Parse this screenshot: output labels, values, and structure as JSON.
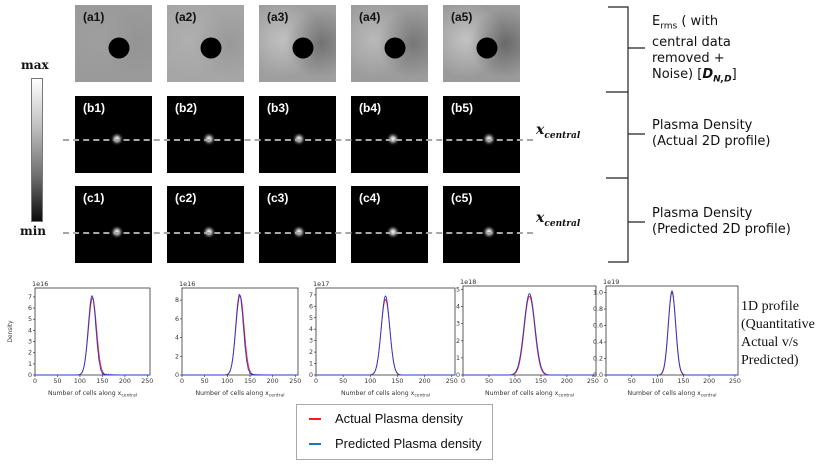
{
  "grid": {
    "row_a": [
      {
        "label": "(a1)",
        "tone": "#9a9a9a",
        "lobe": 0.05
      },
      {
        "label": "(a2)",
        "tone": "#a6a6a6",
        "lobe": 0.1
      },
      {
        "label": "(a3)",
        "tone": "#9e9e9e",
        "lobe": 0.35
      },
      {
        "label": "(a4)",
        "tone": "#9c9c9c",
        "lobe": 0.3
      },
      {
        "label": "(a5)",
        "tone": "#9a9a9a",
        "lobe": 0.4
      }
    ],
    "row_b": [
      {
        "label": "(b1)"
      },
      {
        "label": "(b2)"
      },
      {
        "label": "(b3)"
      },
      {
        "label": "(b4)"
      },
      {
        "label": "(b5)"
      }
    ],
    "row_c": [
      {
        "label": "(c1)"
      },
      {
        "label": "(c2)"
      },
      {
        "label": "(c3)"
      },
      {
        "label": "(c4)"
      },
      {
        "label": "(c5)"
      }
    ]
  },
  "colorbar": {
    "max": "max",
    "min": "min"
  },
  "xcentral": {
    "base": "x",
    "sub": "central"
  },
  "right_labels": {
    "erms": {
      "base": "E",
      "sub": "rms",
      "line1_rest": " ( with",
      "line2": "central data",
      "line3": "removed +",
      "line4_prefix": "Noise) [",
      "d_base": "D",
      "d_sub": "N,D",
      "line4_suffix": "]"
    },
    "actual": {
      "line1": "Plasma  Density",
      "line2": "(Actual 2D profile)"
    },
    "predicted": {
      "line1": "Plasma  Density",
      "line2": "(Predicted 2D profile)"
    }
  },
  "profile_label": {
    "line1": "1D profile",
    "line2": "(Quantitative",
    "line3": "Actual v/s",
    "line4": "Predicted)"
  },
  "legend": {
    "actual": {
      "label": "Actual Plasma density",
      "color": "#ff1a1a"
    },
    "predicted": {
      "label": "Predicted  Plasma density",
      "color": "#1f77b4"
    }
  },
  "chart_data": [
    {
      "type": "line",
      "x_tick_labels": [
        "0",
        "50",
        "100",
        "150",
        "200",
        "250"
      ],
      "y_tick_labels": [
        "0",
        "1",
        "2",
        "3",
        "4",
        "5",
        "6",
        "7"
      ],
      "scale_label": "1e16",
      "ylabel": "Density",
      "xlabel_base": "Number of cells along x",
      "xlabel_sub": "central",
      "xlim": [
        0,
        256
      ],
      "ylim": [
        0,
        7.8
      ],
      "series": [
        {
          "name": "Actual Plasma density",
          "color": "#ff1a1a",
          "peak": 6.9,
          "center": 128,
          "width": 9
        },
        {
          "name": "Predicted  Plasma density",
          "color": "#1f3cd6",
          "peak": 7.1,
          "center": 127,
          "width": 8.5,
          "noise": true
        }
      ]
    },
    {
      "type": "line",
      "x_tick_labels": [
        "0",
        "50",
        "100",
        "150",
        "200",
        "250"
      ],
      "y_tick_labels": [
        "0",
        "2",
        "4",
        "6",
        "8"
      ],
      "scale_label": "1e16",
      "ylabel": "",
      "xlabel_base": "Number of cells along x",
      "xlabel_sub": "central",
      "xlim": [
        0,
        256
      ],
      "ylim": [
        0,
        9.3
      ],
      "series": [
        {
          "name": "Actual Plasma density",
          "color": "#ff1a1a",
          "peak": 8.5,
          "center": 128,
          "width": 9
        },
        {
          "name": "Predicted  Plasma density",
          "color": "#1f3cd6",
          "peak": 8.6,
          "center": 127,
          "width": 8.5,
          "noise": true
        }
      ]
    },
    {
      "type": "line",
      "x_tick_labels": [
        "0",
        "50",
        "100",
        "150",
        "200",
        "250"
      ],
      "y_tick_labels": [
        "0",
        "1",
        "2",
        "3",
        "4",
        "5",
        "6",
        "7"
      ],
      "scale_label": "1e17",
      "ylabel": "",
      "xlabel_base": "Number of cells along x",
      "xlabel_sub": "central",
      "xlim": [
        0,
        256
      ],
      "ylim": [
        0,
        7.6
      ],
      "series": [
        {
          "name": "Actual Plasma density",
          "color": "#ff1a1a",
          "peak": 6.6,
          "center": 128,
          "width": 8
        },
        {
          "name": "Predicted  Plasma density",
          "color": "#1f3cd6",
          "peak": 6.9,
          "center": 128,
          "width": 7.8
        }
      ]
    },
    {
      "type": "line",
      "x_tick_labels": [
        "0",
        "50",
        "100",
        "150",
        "200",
        "250"
      ],
      "y_tick_labels": [
        "0",
        "1",
        "2",
        "3",
        "4",
        "5"
      ],
      "scale_label": "1e18",
      "ylabel": "",
      "xlabel_base": "Number of cells along x",
      "xlabel_sub": "central",
      "xlim": [
        0,
        256
      ],
      "ylim": [
        0,
        5.2
      ],
      "series": [
        {
          "name": "Actual Plasma density",
          "color": "#ff1a1a",
          "peak": 4.6,
          "center": 128,
          "width": 10
        },
        {
          "name": "Predicted  Plasma density",
          "color": "#1f3cd6",
          "peak": 4.75,
          "center": 128,
          "width": 10.5
        }
      ]
    },
    {
      "type": "line",
      "x_tick_labels": [
        "0",
        "50",
        "100",
        "150",
        "200",
        "250"
      ],
      "y_tick_labels": [
        "0.0",
        "0.2",
        "0.4",
        "0.6",
        "0.8",
        "1.0"
      ],
      "scale_label": "1e19",
      "ylabel": "",
      "xlabel_base": "Number of cells along x",
      "xlabel_sub": "central",
      "xlim": [
        0,
        256
      ],
      "ylim": [
        0,
        1.08
      ],
      "series": [
        {
          "name": "Actual Plasma density",
          "color": "#ff1a1a",
          "peak": 1.0,
          "center": 128,
          "width": 7
        },
        {
          "name": "Predicted  Plasma density",
          "color": "#1f3cd6",
          "peak": 1.02,
          "center": 128,
          "width": 7.2
        }
      ]
    }
  ]
}
